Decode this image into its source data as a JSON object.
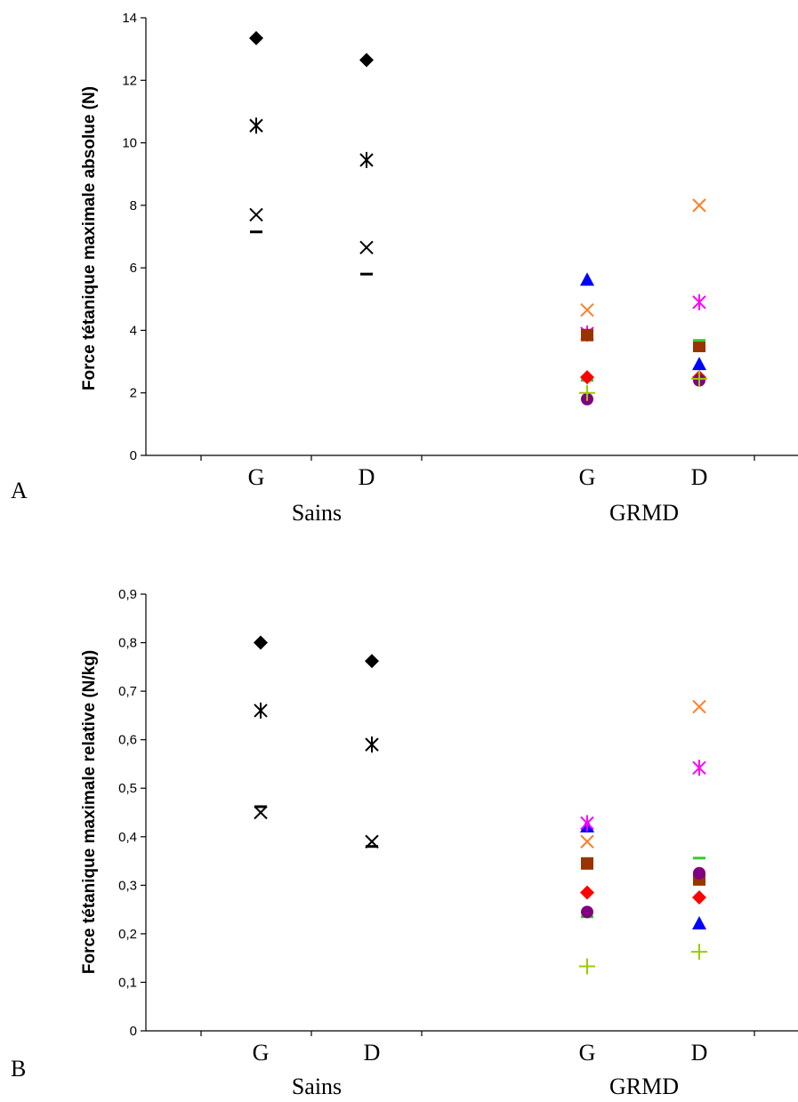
{
  "chart_data": [
    {
      "type": "scatter",
      "panel_label": "A",
      "ylabel": "Force tétanique maximale absolue (N)",
      "ylim": [
        0,
        14
      ],
      "yticks": [
        "0",
        "2",
        "4",
        "6",
        "8",
        "10",
        "12",
        "14"
      ],
      "categories": [
        "G",
        "D",
        "G",
        "D"
      ],
      "groups": [
        "Sains",
        "GRMD"
      ],
      "grid": false,
      "series": [
        {
          "group": "Sains",
          "marker": "diamond",
          "color": "#000000",
          "points": [
            {
              "cat": 0,
              "y": 13.35
            },
            {
              "cat": 1,
              "y": 12.65
            }
          ]
        },
        {
          "group": "Sains",
          "marker": "star",
          "color": "#000000",
          "points": [
            {
              "cat": 0,
              "y": 10.55
            },
            {
              "cat": 1,
              "y": 9.45
            }
          ]
        },
        {
          "group": "Sains",
          "marker": "x",
          "color": "#000000",
          "points": [
            {
              "cat": 0,
              "y": 7.7
            },
            {
              "cat": 1,
              "y": 6.65
            }
          ]
        },
        {
          "group": "Sains",
          "marker": "dash",
          "color": "#000000",
          "points": [
            {
              "cat": 0,
              "y": 7.15
            },
            {
              "cat": 1,
              "y": 5.8
            }
          ]
        },
        {
          "group": "GRMD",
          "marker": "triangle",
          "color": "#0000FF",
          "points": [
            {
              "cat": 2,
              "y": 5.6
            },
            {
              "cat": 3,
              "y": 2.9
            }
          ]
        },
        {
          "group": "GRMD",
          "marker": "x",
          "color": "#FF7F27",
          "points": [
            {
              "cat": 2,
              "y": 4.65
            },
            {
              "cat": 3,
              "y": 8.0
            }
          ]
        },
        {
          "group": "GRMD",
          "marker": "star",
          "color": "#FF00FF",
          "points": [
            {
              "cat": 2,
              "y": 3.9
            },
            {
              "cat": 3,
              "y": 4.9
            }
          ]
        },
        {
          "group": "GRMD",
          "marker": "square",
          "color": "#993300",
          "points": [
            {
              "cat": 2,
              "y": 3.85
            },
            {
              "cat": 3,
              "y": 3.5
            }
          ]
        },
        {
          "group": "GRMD",
          "marker": "dash",
          "color": "#33CC33",
          "points": [
            {
              "cat": 2,
              "y": 2.4
            },
            {
              "cat": 3,
              "y": 3.68
            }
          ]
        },
        {
          "group": "GRMD",
          "marker": "diamond",
          "color": "#FF0000",
          "points": [
            {
              "cat": 2,
              "y": 2.5
            },
            {
              "cat": 3,
              "y": 2.5
            }
          ]
        },
        {
          "group": "GRMD",
          "marker": "circle",
          "color": "#800080",
          "points": [
            {
              "cat": 2,
              "y": 1.8
            },
            {
              "cat": 3,
              "y": 2.4
            }
          ]
        },
        {
          "group": "GRMD",
          "marker": "plus",
          "color": "#99CC00",
          "points": [
            {
              "cat": 2,
              "y": 2.0
            },
            {
              "cat": 3,
              "y": 2.45
            }
          ]
        }
      ]
    },
    {
      "type": "scatter",
      "panel_label": "B",
      "ylabel": "Force tétanique maximale relative (N/kg)",
      "ylim": [
        0,
        0.9
      ],
      "yticks": [
        "0",
        "0,1",
        "0,2",
        "0,3",
        "0,4",
        "0,5",
        "0,6",
        "0,7",
        "0,8",
        "0,9"
      ],
      "categories": [
        "G",
        "D",
        "G",
        "D"
      ],
      "groups": [
        "Sains",
        "GRMD"
      ],
      "grid": false,
      "series": [
        {
          "group": "Sains",
          "marker": "diamond",
          "color": "#000000",
          "points": [
            {
              "cat": 0,
              "y": 0.8
            },
            {
              "cat": 1,
              "y": 0.762
            }
          ]
        },
        {
          "group": "Sains",
          "marker": "star",
          "color": "#000000",
          "points": [
            {
              "cat": 0,
              "y": 0.66
            },
            {
              "cat": 1,
              "y": 0.59
            }
          ]
        },
        {
          "group": "Sains",
          "marker": "x",
          "color": "#000000",
          "points": [
            {
              "cat": 0,
              "y": 0.45
            },
            {
              "cat": 1,
              "y": 0.39
            }
          ]
        },
        {
          "group": "Sains",
          "marker": "dash",
          "color": "#000000",
          "points": [
            {
              "cat": 0,
              "y": 0.462
            },
            {
              "cat": 1,
              "y": 0.38
            }
          ]
        },
        {
          "group": "GRMD",
          "marker": "triangle",
          "color": "#0000FF",
          "points": [
            {
              "cat": 2,
              "y": 0.42
            },
            {
              "cat": 3,
              "y": 0.22
            }
          ]
        },
        {
          "group": "GRMD",
          "marker": "x",
          "color": "#FF7F27",
          "points": [
            {
              "cat": 2,
              "y": 0.39
            },
            {
              "cat": 3,
              "y": 0.668
            }
          ]
        },
        {
          "group": "GRMD",
          "marker": "star",
          "color": "#FF00FF",
          "points": [
            {
              "cat": 2,
              "y": 0.428
            },
            {
              "cat": 3,
              "y": 0.542
            }
          ]
        },
        {
          "group": "GRMD",
          "marker": "square",
          "color": "#993300",
          "points": [
            {
              "cat": 2,
              "y": 0.345
            },
            {
              "cat": 3,
              "y": 0.312
            }
          ]
        },
        {
          "group": "GRMD",
          "marker": "dash",
          "color": "#33CC33",
          "points": [
            {
              "cat": 2,
              "y": 0.235
            },
            {
              "cat": 3,
              "y": 0.356
            }
          ]
        },
        {
          "group": "GRMD",
          "marker": "diamond",
          "color": "#FF0000",
          "points": [
            {
              "cat": 2,
              "y": 0.285
            },
            {
              "cat": 3,
              "y": 0.275
            }
          ]
        },
        {
          "group": "GRMD",
          "marker": "circle",
          "color": "#800080",
          "points": [
            {
              "cat": 2,
              "y": 0.245
            },
            {
              "cat": 3,
              "y": 0.325
            }
          ]
        },
        {
          "group": "GRMD",
          "marker": "plus",
          "color": "#99CC00",
          "points": [
            {
              "cat": 2,
              "y": 0.133
            },
            {
              "cat": 3,
              "y": 0.163
            }
          ]
        }
      ]
    }
  ]
}
